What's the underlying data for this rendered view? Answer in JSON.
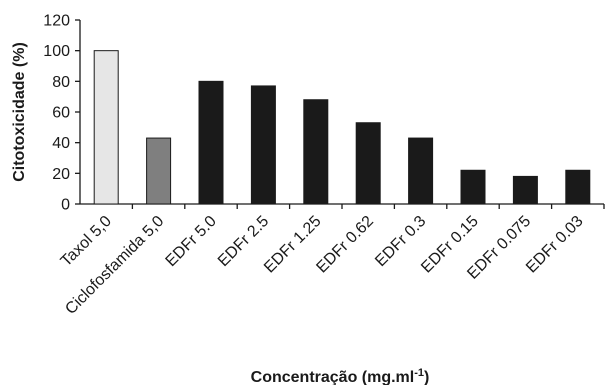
{
  "chart_data": {
    "type": "bar",
    "title": "",
    "xlabel": "Concentração (mg.ml",
    "xlabel_sup": "-1",
    "xlabel_close": ")",
    "ylabel": "Citotoxicidade (%)",
    "ylim": [
      0,
      120
    ],
    "yticks": [
      0,
      20,
      40,
      60,
      80,
      100,
      120
    ],
    "grid": false,
    "legend": "none",
    "categories": [
      "Taxol 5,0",
      "Ciclofosfamida 5,0",
      "EDFr 5.0",
      "EDFr 2.5",
      "EDFr 1.25",
      "EDFr 0.62",
      "EDFr 0.3",
      "EDFr 0.15",
      "EDFr 0.075",
      "EDFr 0.03"
    ],
    "values": [
      100,
      43,
      80,
      77,
      68,
      53,
      43,
      22,
      18,
      22
    ],
    "colors": [
      "#e6e6e6",
      "#7f7f7f",
      "#1a1a1a",
      "#1a1a1a",
      "#1a1a1a",
      "#1a1a1a",
      "#1a1a1a",
      "#1a1a1a",
      "#1a1a1a",
      "#1a1a1a"
    ]
  }
}
